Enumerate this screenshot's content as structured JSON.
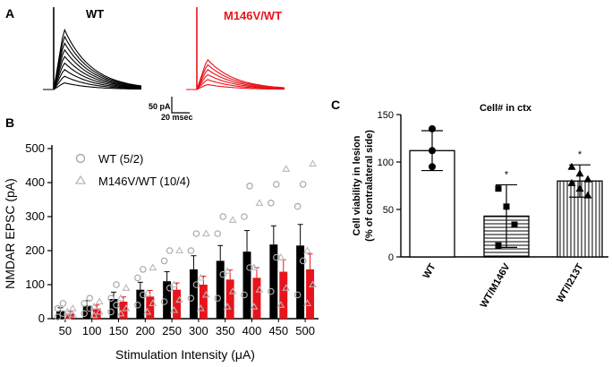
{
  "panel_a": {
    "letter": "A",
    "wt_label": "WT",
    "mut_label": "M146V/WT",
    "scale_amp": "50 pA",
    "scale_time": "20 msec",
    "colors": {
      "wt": "#000000",
      "mut": "#e8141b"
    }
  },
  "chart_data": [
    {
      "panel": "B",
      "type": "bar",
      "title": "",
      "xlabel": "Stimulation Intensity (μA)",
      "ylabel": "NMDAR EPSC (pA)",
      "ylim": [
        0,
        500
      ],
      "yticks": [
        "0",
        "100",
        "200",
        "300",
        "400",
        "500"
      ],
      "categories": [
        "50",
        "100",
        "150",
        "200",
        "250",
        "300",
        "350",
        "400",
        "450",
        "500"
      ],
      "legend_position": "top-left",
      "series": [
        {
          "name": "WT (5/2)",
          "color": "#000000",
          "marker": "circle",
          "values": [
            22,
            38,
            58,
            85,
            110,
            145,
            170,
            197,
            218,
            215
          ],
          "error": [
            10,
            15,
            20,
            22,
            28,
            40,
            45,
            62,
            55,
            62
          ],
          "points": [
            [
              5,
              15,
              30,
              45
            ],
            [
              15,
              30,
              45,
              60
            ],
            [
              20,
              40,
              60,
              100
            ],
            [
              40,
              70,
              120,
              145
            ],
            [
              50,
              90,
              170,
              200
            ],
            [
              60,
              100,
              200,
              250
            ],
            [
              60,
              130,
              250,
              300
            ],
            [
              70,
              150,
              300,
              390
            ],
            [
              80,
              180,
              340,
              395
            ],
            [
              70,
              170,
              330,
              395
            ]
          ]
        },
        {
          "name": "M146V/WT (10/4)",
          "color": "#e8141b",
          "marker": "triangle",
          "values": [
            15,
            30,
            50,
            65,
            85,
            100,
            115,
            120,
            138,
            145
          ],
          "error": [
            6,
            10,
            14,
            18,
            20,
            25,
            28,
            30,
            35,
            45
          ],
          "points": [
            [
              5,
              12,
              20,
              30
            ],
            [
              10,
              20,
              35,
              50
            ],
            [
              15,
              30,
              60,
              90
            ],
            [
              20,
              45,
              75,
              150
            ],
            [
              25,
              55,
              100,
              200
            ],
            [
              30,
              70,
              120,
              250
            ],
            [
              35,
              80,
              140,
              290
            ],
            [
              35,
              85,
              150,
              340
            ],
            [
              40,
              90,
              180,
              440
            ],
            [
              45,
              100,
              200,
              455
            ]
          ]
        }
      ]
    },
    {
      "panel": "C",
      "type": "bar",
      "title": "Cell# in ctx",
      "xlabel": "",
      "ylabel_line1": "Cell viability in lesion",
      "ylabel_line2": "(% of contralateral side)",
      "ylim": [
        0,
        150
      ],
      "yticks": [
        "0",
        "50",
        "100",
        "150"
      ],
      "categories": [
        "WT",
        "WT/M146V",
        "WT/I213T"
      ],
      "values": [
        112,
        43,
        80
      ],
      "error": [
        21,
        33,
        17
      ],
      "patterns": [
        "none",
        "horizontal",
        "vertical"
      ],
      "significance": [
        "",
        "*",
        "*"
      ],
      "points": [
        [
          135,
          112,
          95
        ],
        [
          72,
          53,
          34,
          12
        ],
        [
          95,
          88,
          82,
          78,
          72,
          65
        ]
      ],
      "markers": [
        "circle",
        "square",
        "triangle"
      ]
    }
  ]
}
